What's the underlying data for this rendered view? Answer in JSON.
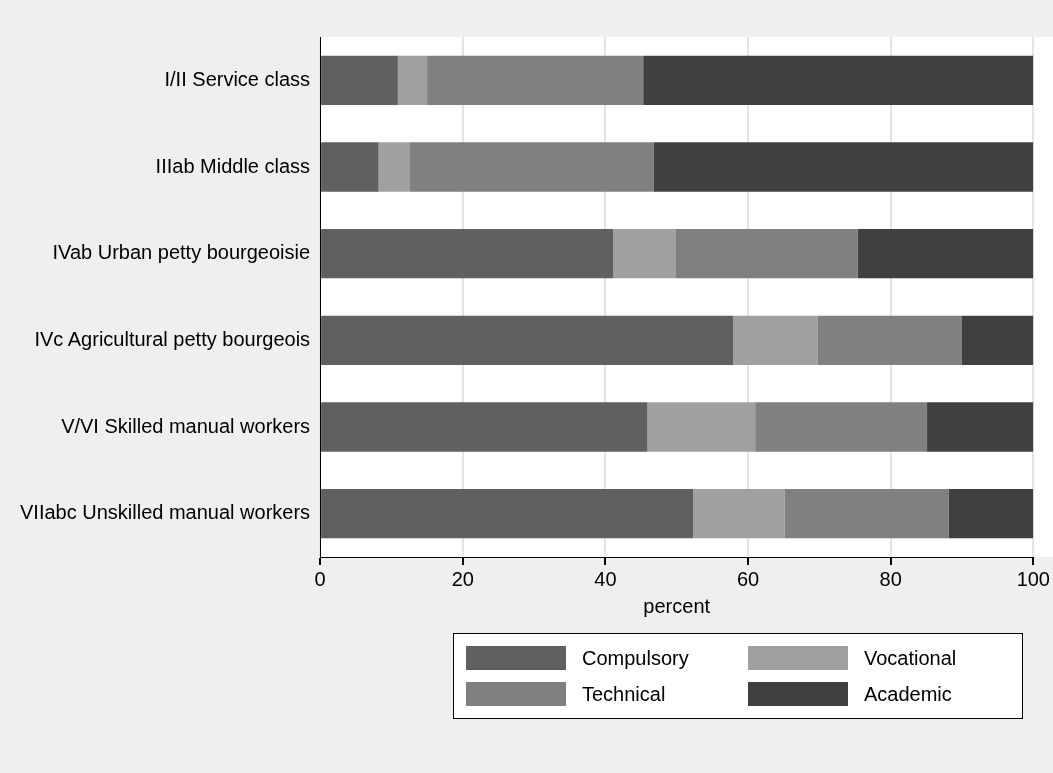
{
  "chart_data": {
    "type": "bar",
    "orientation": "horizontal",
    "stacked": true,
    "xlabel": "percent",
    "categories": [
      "I/II Service class",
      "IIIab Middle class",
      "IVab Urban petty bourgeoisie",
      "IVc Agricultural petty bourgeois",
      "V/VI Skilled manual workers",
      "VIIabc Unskilled manual workers"
    ],
    "series": [
      {
        "name": "Compulsory",
        "color": "#606060",
        "values": [
          10.9,
          8.2,
          41.1,
          57.9,
          45.9,
          52.3
        ]
      },
      {
        "name": "Vocational",
        "color": "#a0a0a0",
        "values": [
          4.1,
          4.3,
          8.8,
          11.9,
          15.1,
          12.8
        ]
      },
      {
        "name": "Technical",
        "color": "#808080",
        "values": [
          30.3,
          34.3,
          25.5,
          20.2,
          24.1,
          23.0
        ]
      },
      {
        "name": "Academic",
        "color": "#404040",
        "values": [
          54.7,
          53.2,
          24.6,
          10.0,
          14.9,
          11.9
        ]
      }
    ],
    "xlim": [
      0,
      100
    ],
    "xticks": [
      0,
      20,
      40,
      60,
      80,
      100
    ],
    "grid": "x",
    "legend": "bottom"
  }
}
